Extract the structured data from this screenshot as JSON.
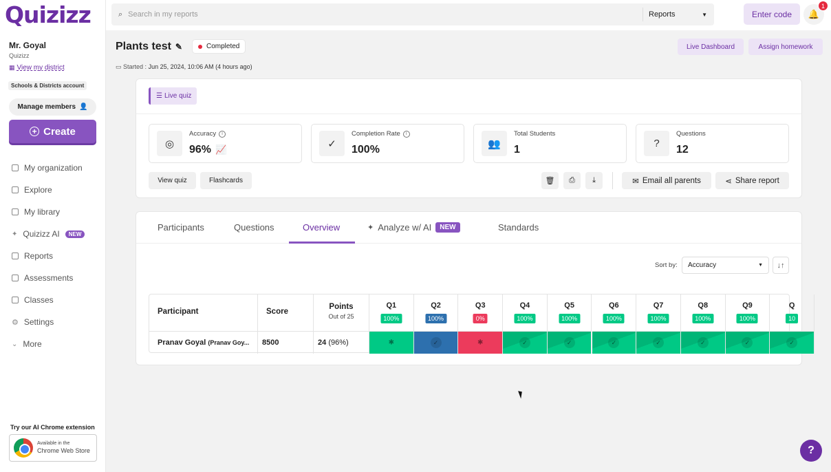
{
  "app": {
    "logo": "Quizizz"
  },
  "sidebar": {
    "user_name": "Mr. Goyal",
    "user_org": "Quizizz",
    "district_link": "View my district",
    "account_badge": "Schools & Districts account",
    "manage_members": "Manage members",
    "create": "Create",
    "items": [
      {
        "label": "My organization",
        "icon": "building-icon"
      },
      {
        "label": "Explore",
        "icon": "compass-icon"
      },
      {
        "label": "My library",
        "icon": "library-icon"
      },
      {
        "label": "Quizizz AI",
        "icon": "sparkle-icon",
        "badge": "NEW"
      },
      {
        "label": "Reports",
        "icon": "chart-icon"
      },
      {
        "label": "Assessments",
        "icon": "clipboard-icon"
      },
      {
        "label": "Classes",
        "icon": "classroom-icon"
      },
      {
        "label": "Settings",
        "icon": "gear-icon"
      },
      {
        "label": "More",
        "icon": "chevron-down-icon"
      }
    ],
    "extension_label": "Try our AI Chrome extension",
    "store_line1": "Available in the",
    "store_line2": "Chrome Web Store"
  },
  "topbar": {
    "search_placeholder": "Search in my reports",
    "scope": "Reports",
    "enter_code": "Enter code",
    "notifications": "1"
  },
  "header": {
    "title": "Plants test",
    "status": "Completed",
    "started_label": "Started :",
    "started_value": "Jun 25, 2024, 10:06 AM (4 hours ago)",
    "live_dashboard": "Live Dashboard",
    "assign_homework": "Assign homework"
  },
  "summary": {
    "mode_tag": "Live quiz",
    "stats": [
      {
        "label": "Accuracy",
        "value": "96%"
      },
      {
        "label": "Completion Rate",
        "value": "100%"
      },
      {
        "label": "Total Students",
        "value": "1"
      },
      {
        "label": "Questions",
        "value": "12"
      }
    ],
    "view_quiz": "View quiz",
    "flashcards": "Flashcards",
    "email_parents": "Email all parents",
    "share_report": "Share report"
  },
  "tabs": {
    "items": [
      "Participants",
      "Questions",
      "Overview",
      "Analyze w/ AI",
      "Standards"
    ],
    "active": "Overview",
    "new_badge": "NEW"
  },
  "sort": {
    "label": "Sort by:",
    "value": "Accuracy"
  },
  "table": {
    "headers": {
      "participant": "Participant",
      "score": "Score",
      "points": "Points",
      "points_sub": "Out of 25"
    },
    "questions": [
      {
        "label": "Q1",
        "pct": "100%"
      },
      {
        "label": "Q2",
        "pct": "100%"
      },
      {
        "label": "Q3",
        "pct": "0%"
      },
      {
        "label": "Q4",
        "pct": "100%"
      },
      {
        "label": "Q5",
        "pct": "100%"
      },
      {
        "label": "Q6",
        "pct": "100%"
      },
      {
        "label": "Q7",
        "pct": "100%"
      },
      {
        "label": "Q8",
        "pct": "100%"
      },
      {
        "label": "Q9",
        "pct": "100%"
      },
      {
        "label": "Q",
        "pct": "10"
      }
    ],
    "rows": [
      {
        "participant": "Pranav Goyal",
        "participant_sub": "(Pranav Goy...",
        "score": "8500",
        "points": "24",
        "points_pct": "(96%)"
      }
    ]
  },
  "colors": {
    "brand": "#8854c0",
    "correct": "#00c985",
    "incorrect": "#ec3b5c",
    "blue": "#2d70ae"
  }
}
